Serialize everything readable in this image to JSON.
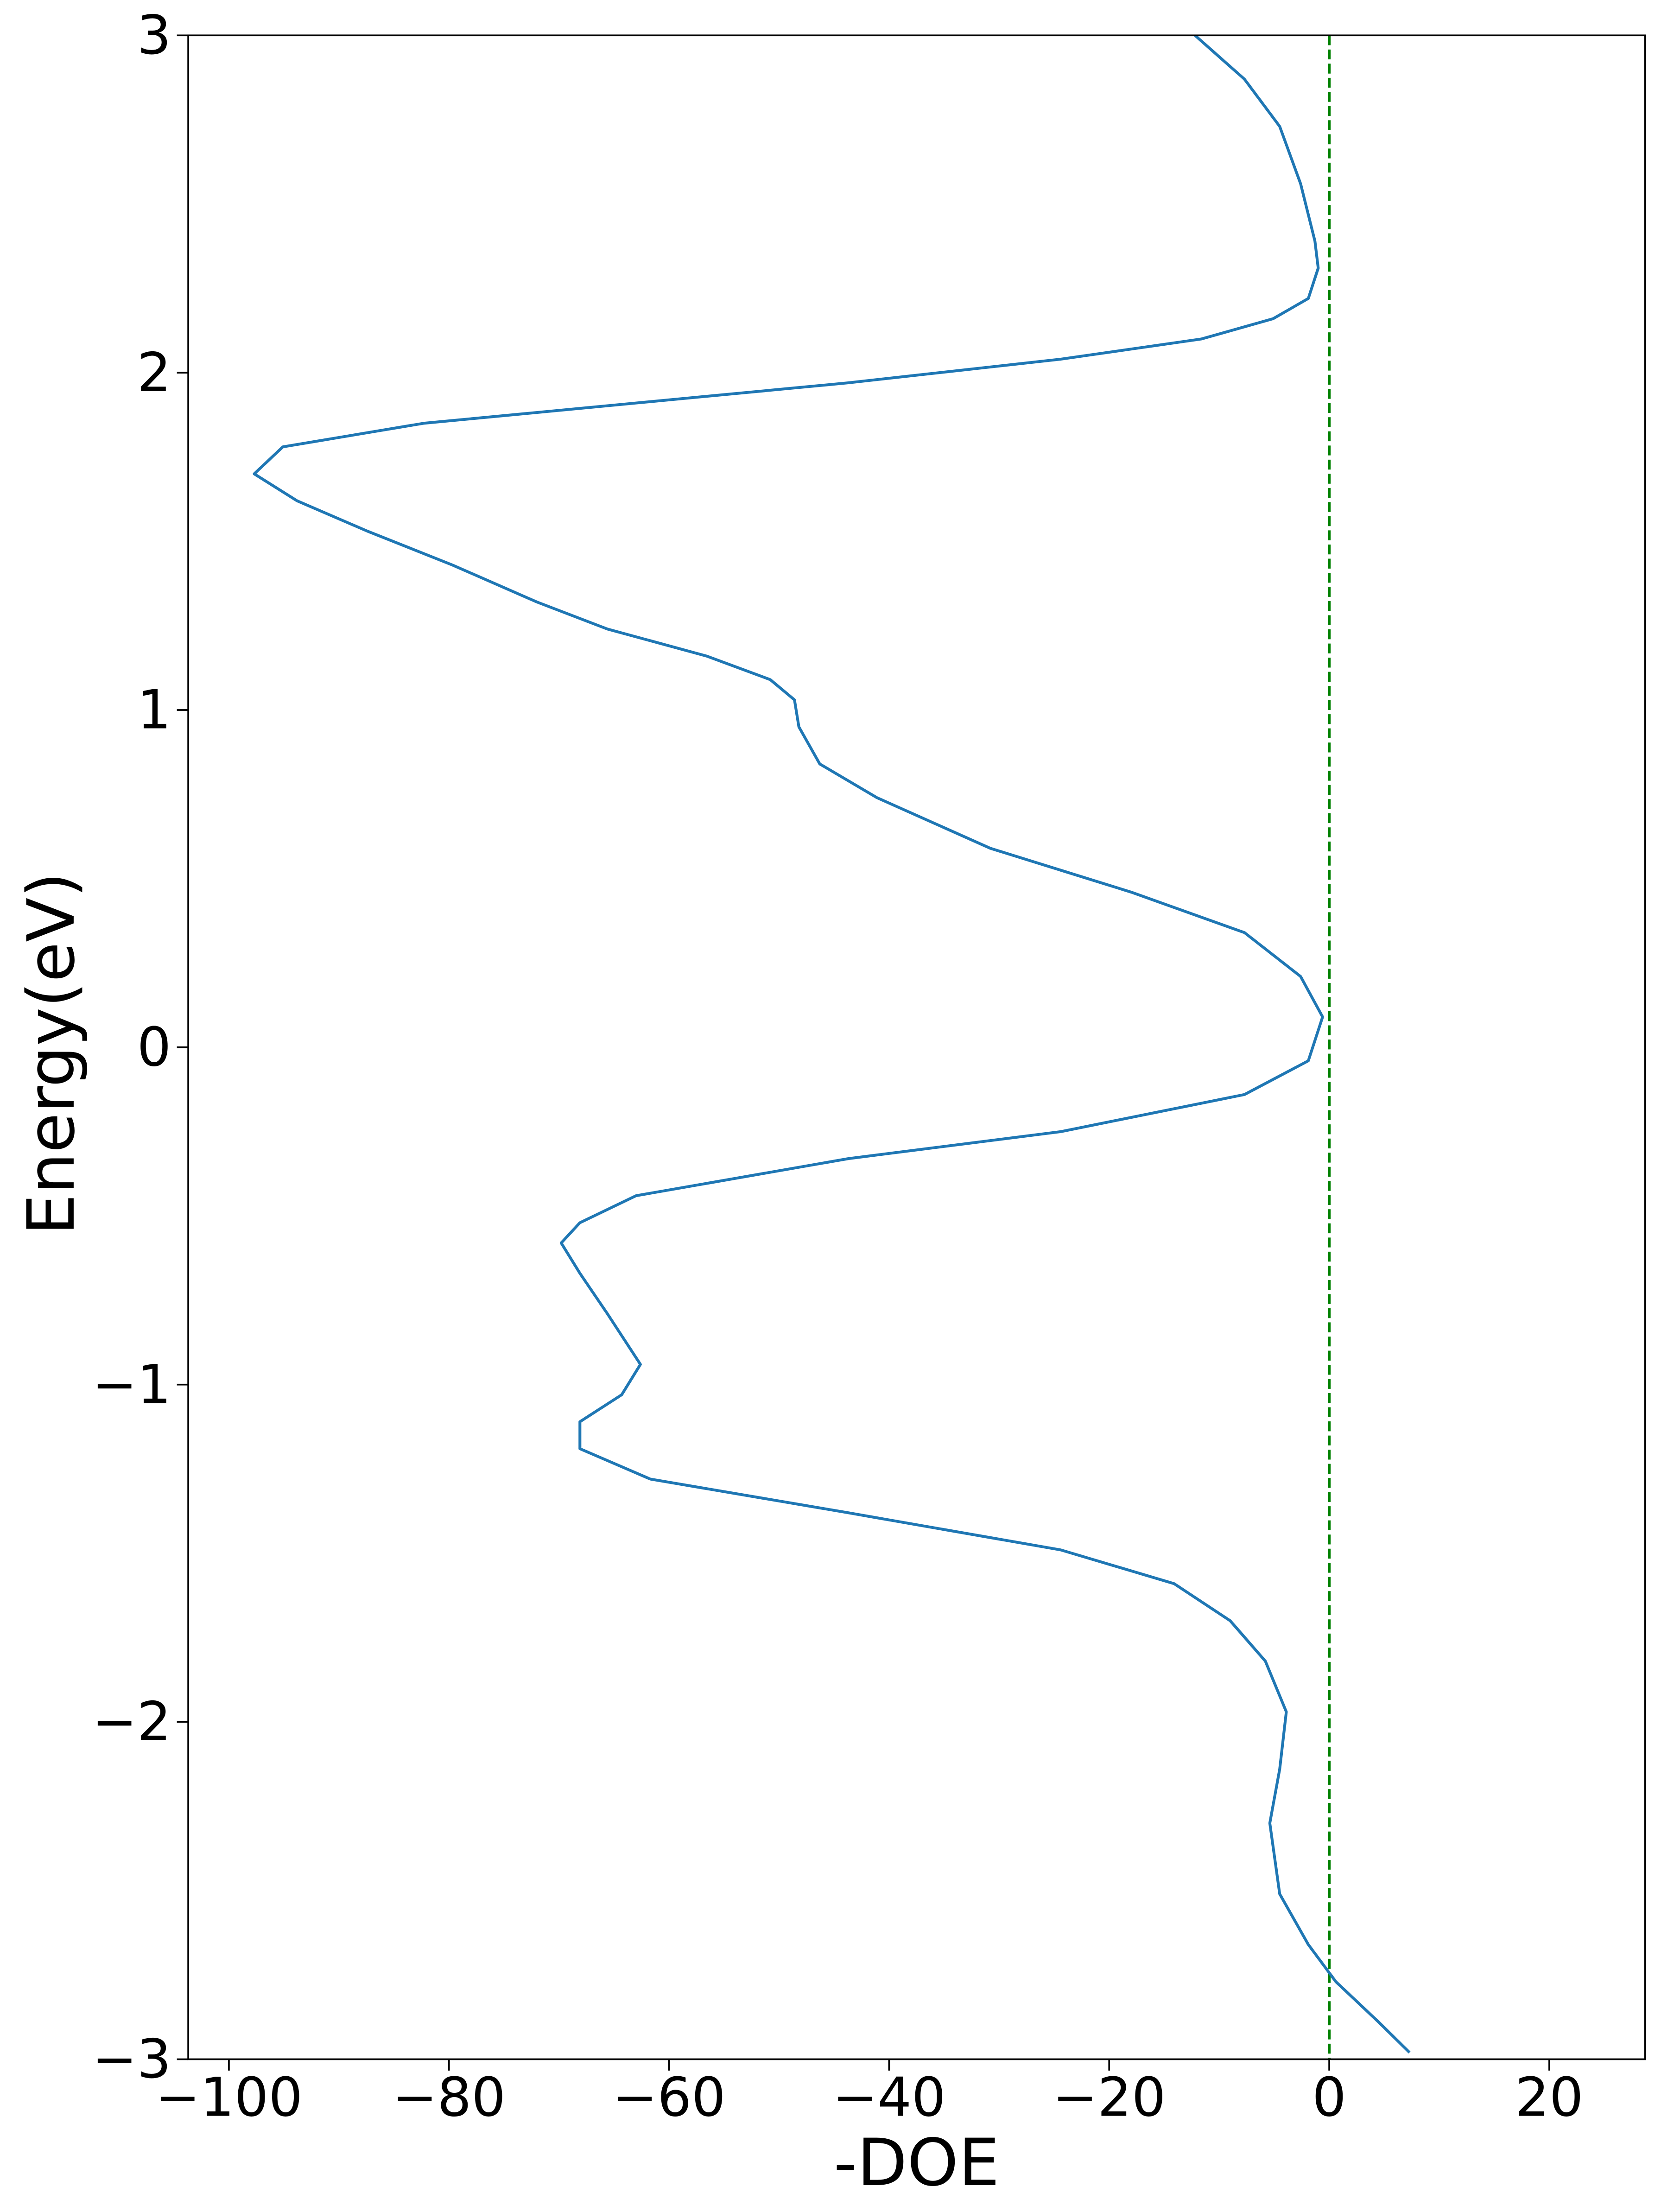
{
  "chart_data": {
    "type": "line",
    "xlabel": "-DOE",
    "ylabel": "Energy(eV)",
    "color": "#1f77b4",
    "x": [
      -12.2,
      -7.7,
      -4.5,
      -2.6,
      -1.3,
      -1.0,
      -1.9,
      -5.1,
      -11.6,
      -24.4,
      -43.7,
      -63,
      -82.3,
      -95.1,
      -97.7,
      -93.8,
      -87.4,
      -79.7,
      -72,
      -65.6,
      -56.6,
      -50.8,
      -48.6,
      -48.2,
      -46.3,
      -41.1,
      -30.8,
      -18,
      -7.7,
      -2.6,
      -0.6,
      -1.9,
      -7.7,
      -24.4,
      -43.7,
      -63,
      -68.1,
      -69.8,
      -68.1,
      -65.6,
      -62.6,
      -64.3,
      -68.1,
      -68.1,
      -61.7,
      -43.7,
      -24.4,
      -14.1,
      -9,
      -5.8,
      -3.9,
      -4.5,
      -5.4,
      -4.5,
      -1.9,
      0.6,
      4.5,
      7.3
    ],
    "values": [
      3.0,
      2.87,
      2.73,
      2.56,
      2.39,
      2.31,
      2.22,
      2.16,
      2.1,
      2.04,
      1.97,
      1.91,
      1.85,
      1.78,
      1.7,
      1.62,
      1.53,
      1.43,
      1.32,
      1.24,
      1.16,
      1.09,
      1.03,
      0.95,
      0.84,
      0.74,
      0.59,
      0.46,
      0.34,
      0.21,
      0.09,
      -0.04,
      -0.14,
      -0.25,
      -0.33,
      -0.44,
      -0.52,
      -0.58,
      -0.67,
      -0.79,
      -0.94,
      -1.03,
      -1.11,
      -1.19,
      -1.28,
      -1.38,
      -1.49,
      -1.59,
      -1.7,
      -1.82,
      -1.97,
      -2.14,
      -2.3,
      -2.51,
      -2.66,
      -2.77,
      -2.89,
      -2.98
    ],
    "vline": {
      "x": 0,
      "color": "#008000"
    },
    "xlim": [
      -103.7,
      28.7
    ],
    "ylim": [
      -3,
      3
    ],
    "xticks": [
      {
        "value": -100,
        "label": "−100"
      },
      {
        "value": -80,
        "label": "−80"
      },
      {
        "value": -60,
        "label": "−60"
      },
      {
        "value": -40,
        "label": "−40"
      },
      {
        "value": -20,
        "label": "−20"
      },
      0,
      20
    ],
    "yticks": [
      {
        "value": -3,
        "label": "−3"
      },
      {
        "value": -2,
        "label": "−2"
      },
      {
        "value": -1,
        "label": "−1"
      },
      0,
      1,
      2,
      3
    ]
  }
}
